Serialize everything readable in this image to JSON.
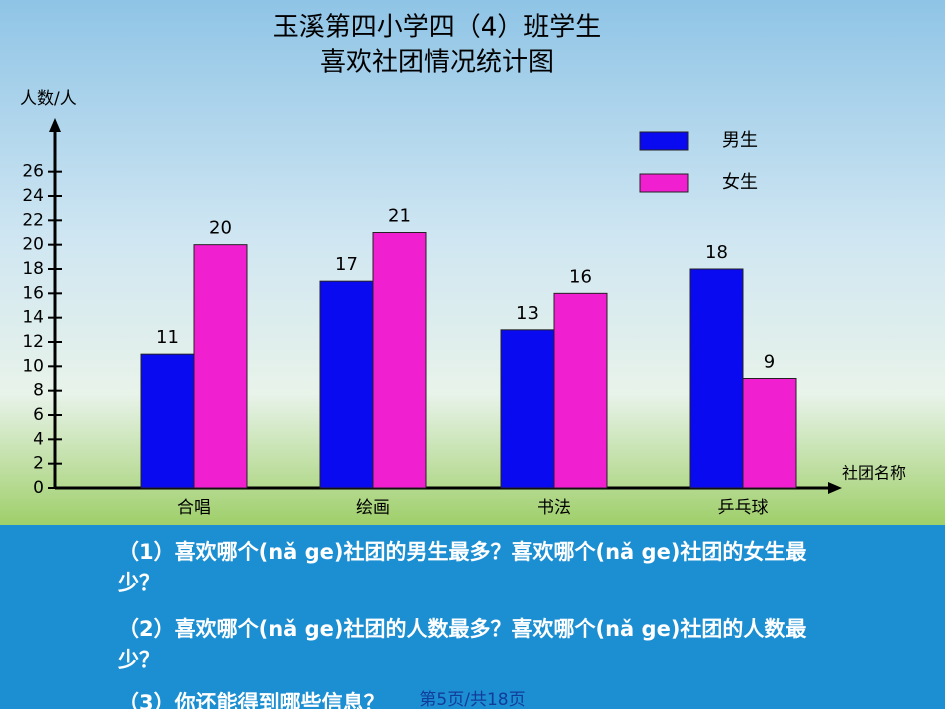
{
  "chart_data": {
    "type": "bar",
    "title": [
      "玉溪第四小学四（4）班学生",
      "喜欢社团情况统计图"
    ],
    "y_label": "人数/人",
    "x_label": "社团名称",
    "categories": [
      "合唱",
      "绘画",
      "书法",
      "乒乓球"
    ],
    "series": [
      {
        "name": "男生",
        "color": "#0a0af0",
        "values": [
          11,
          17,
          13,
          18
        ]
      },
      {
        "name": "女生",
        "color": "#f020d0",
        "values": [
          20,
          21,
          16,
          9
        ]
      }
    ],
    "ylim": [
      0,
      30
    ],
    "yticks": [
      0,
      2,
      4,
      6,
      8,
      10,
      12,
      14,
      16,
      18,
      20,
      22,
      24,
      26
    ],
    "grid": false
  },
  "questions": [
    "（1）喜欢哪个(nǎ ge)社团的男生最多？喜欢哪个(nǎ ge)社团的女生最少？",
    "（2）喜欢哪个(nǎ ge)社团的人数最多？喜欢哪个(nǎ ge)社团的人数最少？",
    "（3）你还能得到哪些信息？"
  ],
  "footer": "第5页/共18页"
}
